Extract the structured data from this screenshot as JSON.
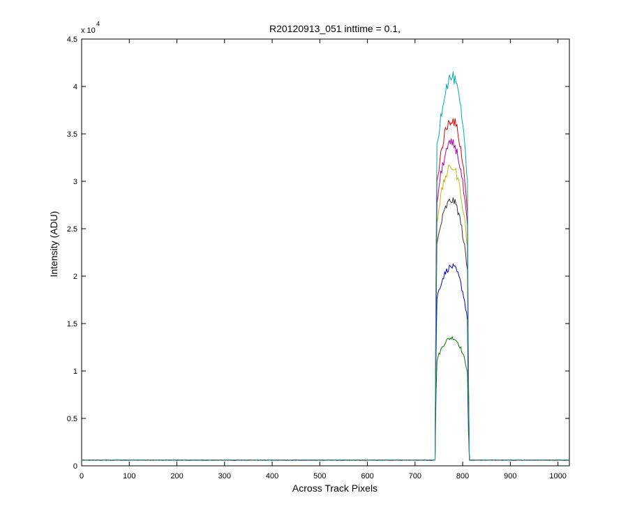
{
  "chart_data": {
    "type": "line",
    "title": "R20120913_051 inttime = 0.1,",
    "xlabel": "Across Track Pixels",
    "ylabel": "Intensity (ADU)",
    "y_multiplier_label": "x 10",
    "y_multiplier_exponent": "4",
    "xlim": [
      0,
      1024
    ],
    "ylim": [
      0,
      45000
    ],
    "xticks": [
      0,
      100,
      200,
      300,
      400,
      500,
      600,
      700,
      800,
      900,
      1000
    ],
    "xtick_labels": [
      "0",
      "100",
      "200",
      "300",
      "400",
      "500",
      "600",
      "700",
      "800",
      "900",
      "1000"
    ],
    "yticks": [
      0,
      5000,
      10000,
      15000,
      20000,
      25000,
      30000,
      35000,
      40000,
      45000
    ],
    "ytick_labels": [
      "0",
      "0.5",
      "1",
      "1.5",
      "2",
      "2.5",
      "3",
      "3.5",
      "4",
      "4.5"
    ],
    "grid": false,
    "baseline": 600,
    "step_left_x": 745,
    "step_right_x": 810,
    "series": [
      {
        "color": "#00aaaa",
        "peak": 41000,
        "edge_left": 33000,
        "edge_right": 30000
      },
      {
        "color": "#dd0000",
        "peak": 36500,
        "edge_left": 29500,
        "edge_right": 27000
      },
      {
        "color": "#aa00aa",
        "peak": 34000,
        "edge_left": 27500,
        "edge_right": 25000
      },
      {
        "color": "#bbbb00",
        "peak": 31500,
        "edge_left": 25500,
        "edge_right": 23000
      },
      {
        "color": "#333333",
        "peak": 28000,
        "edge_left": 23000,
        "edge_right": 20500
      },
      {
        "color": "#0000cc",
        "peak": 21000,
        "edge_left": 17500,
        "edge_right": 15500
      },
      {
        "color": "#007700",
        "peak": 13500,
        "edge_left": 11000,
        "edge_right": 10000
      }
    ]
  }
}
